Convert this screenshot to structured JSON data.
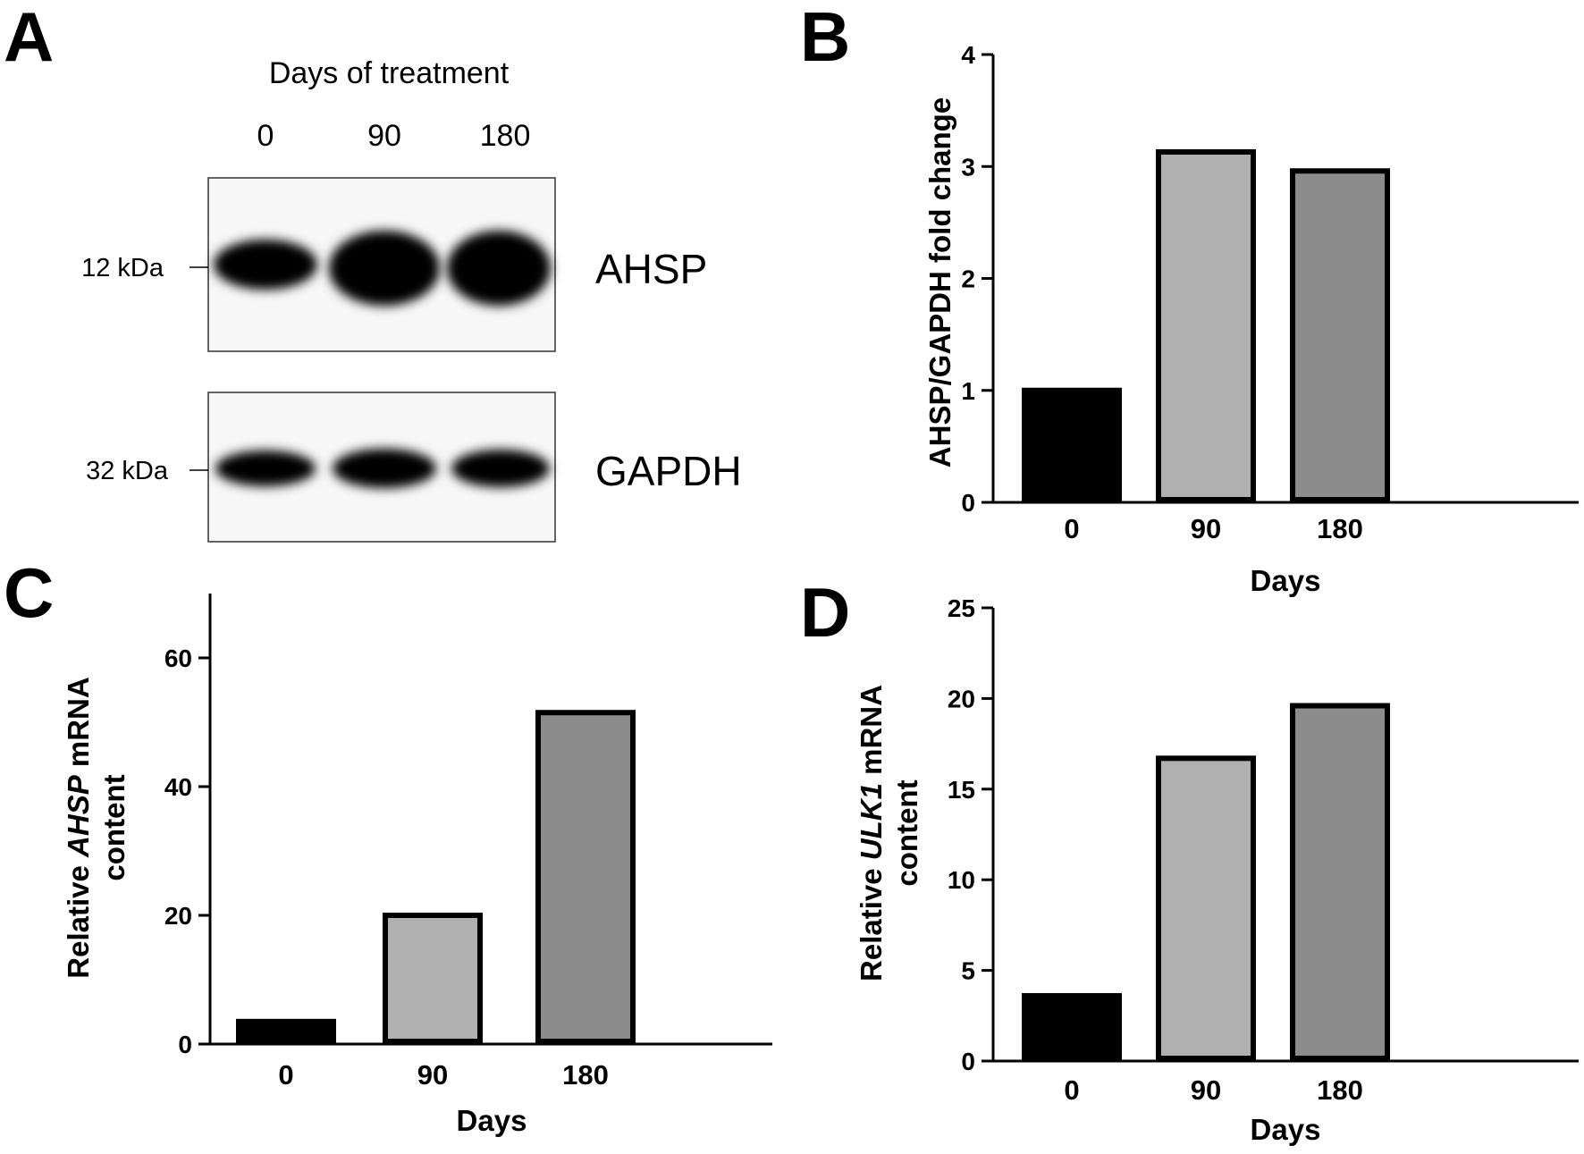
{
  "panels": {
    "a": {
      "letter": "A"
    },
    "b": {
      "letter": "B"
    },
    "c": {
      "letter": "C"
    },
    "d": {
      "letter": "D"
    }
  },
  "blot": {
    "header": "Days of treatment",
    "lanes": [
      "0",
      "90",
      "180"
    ],
    "bands": [
      {
        "label": "AHSP",
        "mw": "12 kDa",
        "intensities": [
          0.3,
          1.0,
          0.97
        ]
      },
      {
        "label": "GAPDH",
        "mw": "32 kDa",
        "intensities": [
          0.95,
          0.97,
          0.95
        ]
      }
    ]
  },
  "colors": {
    "day0": "#000000",
    "day90": "#b0b0b0",
    "day180": "#8c8c8c"
  },
  "chart_data": [
    {
      "panel": "B",
      "type": "bar",
      "categories": [
        "0",
        "90",
        "180"
      ],
      "values": [
        1.0,
        3.13,
        2.96
      ],
      "xlabel": "Days",
      "ylabel": "AHSP/GAPDH fold change",
      "ylim": [
        0,
        4
      ],
      "yticks": [
        "0",
        "1",
        "2",
        "3",
        "4"
      ]
    },
    {
      "panel": "C",
      "type": "bar",
      "categories": [
        "0",
        "90",
        "180"
      ],
      "values": [
        3.5,
        20,
        51.5
      ],
      "xlabel": "Days",
      "ylabel_line1_pre": "Relative ",
      "ylabel_line1_italic": "AHSP",
      "ylabel_line1_post": " mRNA",
      "ylabel_line2": "content",
      "ylim": [
        0,
        70
      ],
      "yticks": [
        "0",
        "20",
        "40",
        "60"
      ]
    },
    {
      "panel": "D",
      "type": "bar",
      "categories": [
        "0",
        "90",
        "180"
      ],
      "values": [
        3.6,
        16.7,
        19.6
      ],
      "xlabel": "Days",
      "ylabel_line1_pre": "Relative ",
      "ylabel_line1_italic": "ULK1",
      "ylabel_line1_post": " mRNA",
      "ylabel_line2": "content",
      "ylim": [
        0,
        25
      ],
      "yticks": [
        "0",
        "5",
        "10",
        "15",
        "20",
        "25"
      ]
    }
  ]
}
